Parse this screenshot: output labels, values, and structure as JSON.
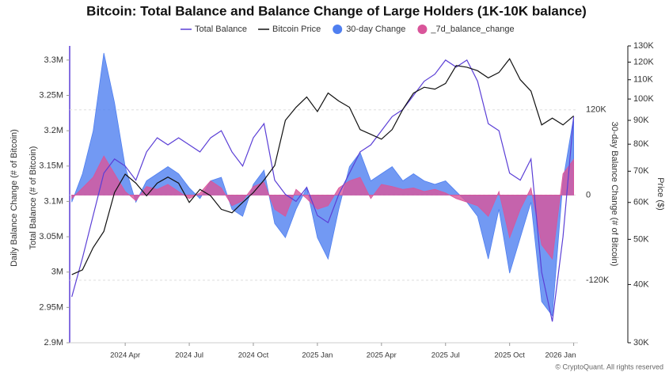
{
  "chart_data": {
    "type": "line",
    "title": "Bitcoin: Total Balance and Balance Change of Large Holders (1K-10K balance)",
    "y_label": "Total Balance (# of Bitcoin)",
    "y_label_outer": "Daily Balance Change (# of Bitcoin)",
    "y2_label": "30-day Balance Change (# of Bitcoin)",
    "y3_label": "Price ($)",
    "footer": "© CryptoQuant. All rights reserved",
    "x": [
      0.5,
      1,
      1.5,
      2,
      2.5,
      3,
      3.5,
      4,
      4.5,
      5,
      5.5,
      6,
      6.5,
      7,
      7.5,
      8,
      8.5,
      9,
      9.5,
      10,
      10.5,
      11,
      11.5,
      12,
      12.5,
      13,
      13.5,
      14,
      14.5,
      15,
      15.5,
      16,
      16.5,
      17,
      17.5,
      18,
      18.5,
      19,
      19.5,
      20,
      20.5,
      21,
      21.5,
      22,
      22.5,
      23,
      23.5,
      24
    ],
    "xlim": [
      0.4,
      24.2
    ],
    "xticks": [
      {
        "value": 3,
        "label": "2024 Apr"
      },
      {
        "value": 6,
        "label": "2024 Jul"
      },
      {
        "value": 9,
        "label": "2024 Oct"
      },
      {
        "value": 12,
        "label": "2025 Jan"
      },
      {
        "value": 15,
        "label": "2025 Apr"
      },
      {
        "value": 18,
        "label": "2025 Jul"
      },
      {
        "value": 21,
        "label": "2025 Oct"
      },
      {
        "value": 24,
        "label": "2026 Jan"
      }
    ],
    "ylim": [
      2900000,
      3320000
    ],
    "yticks": [
      {
        "value": 2900000,
        "label": "2.9M"
      },
      {
        "value": 2950000,
        "label": "2.95M"
      },
      {
        "value": 3000000,
        "label": "3M"
      },
      {
        "value": 3050000,
        "label": "3.05M"
      },
      {
        "value": 3100000,
        "label": "3.1M"
      },
      {
        "value": 3150000,
        "label": "3.15M"
      },
      {
        "value": 3200000,
        "label": "3.2M"
      },
      {
        "value": 3250000,
        "label": "3.25M"
      },
      {
        "value": 3300000,
        "label": "3.3M"
      }
    ],
    "y2lim": [
      -208000,
      210000
    ],
    "y2ticks": [
      {
        "value": 120000,
        "label": "120K"
      },
      0,
      {
        "value": -120000,
        "label": "-120K"
      }
    ],
    "y3lim": [
      30000,
      130000
    ],
    "y3scale": "log",
    "y3ticks": [
      {
        "value": 30000,
        "label": "30K"
      },
      {
        "value": 40000,
        "label": "40K"
      },
      {
        "value": 50000,
        "label": "50K"
      },
      {
        "value": 60000,
        "label": "60K"
      },
      {
        "value": 70000,
        "label": "70K"
      },
      {
        "value": 80000,
        "label": "80K"
      },
      {
        "value": 90000,
        "label": "90K"
      },
      {
        "value": 100000,
        "label": "100K"
      },
      {
        "value": 110000,
        "label": "110K"
      },
      {
        "value": 120000,
        "label": "120K"
      },
      {
        "value": 130000,
        "label": "130K"
      }
    ],
    "series": [
      {
        "name": "30-day Change",
        "type": "area",
        "axis": "y2",
        "color": "#4f7ff0",
        "values": [
          -10000,
          30000,
          90000,
          200000,
          130000,
          40000,
          -10000,
          20000,
          30000,
          40000,
          30000,
          10000,
          -5000,
          20000,
          25000,
          -20000,
          -30000,
          15000,
          35000,
          -40000,
          -60000,
          -20000,
          10000,
          -60000,
          -90000,
          -20000,
          40000,
          60000,
          20000,
          30000,
          40000,
          20000,
          30000,
          20000,
          15000,
          20000,
          5000,
          -10000,
          -30000,
          -90000,
          -20000,
          -110000,
          -60000,
          -10000,
          -150000,
          -170000,
          20000,
          110000
        ]
      },
      {
        "name": "_7d_balance_change",
        "type": "area",
        "axis": "y2",
        "color": "#d9559a",
        "values": [
          -5000,
          10000,
          25000,
          55000,
          30000,
          5000,
          -8000,
          12000,
          8000,
          15000,
          5000,
          -5000,
          3000,
          20000,
          10000,
          -15000,
          -8000,
          12000,
          18000,
          -20000,
          -30000,
          8000,
          -5000,
          -20000,
          -15000,
          10000,
          20000,
          25000,
          -5000,
          15000,
          12000,
          8000,
          10000,
          5000,
          8000,
          3000,
          -5000,
          -10000,
          -15000,
          -30000,
          5000,
          -60000,
          -20000,
          10000,
          -70000,
          -90000,
          30000,
          50000
        ]
      },
      {
        "name": "Total Balance",
        "type": "line",
        "axis": "y",
        "color": "#5b3fd6",
        "values": [
          2965000,
          3020000,
          3080000,
          3140000,
          3160000,
          3150000,
          3130000,
          3170000,
          3190000,
          3180000,
          3190000,
          3180000,
          3170000,
          3190000,
          3200000,
          3170000,
          3150000,
          3190000,
          3210000,
          3130000,
          3110000,
          3100000,
          3120000,
          3080000,
          3070000,
          3110000,
          3140000,
          3170000,
          3180000,
          3200000,
          3220000,
          3230000,
          3250000,
          3270000,
          3280000,
          3300000,
          3290000,
          3300000,
          3270000,
          3210000,
          3200000,
          3140000,
          3130000,
          3160000,
          3000000,
          2930000,
          3050000,
          3220000
        ]
      },
      {
        "name": "Bitcoin Price",
        "type": "line",
        "axis": "y3",
        "color": "#111111",
        "values": [
          42000,
          43000,
          48000,
          52000,
          63000,
          69000,
          66000,
          62000,
          66000,
          68000,
          66000,
          60000,
          64000,
          62000,
          58000,
          57000,
          60000,
          63000,
          67000,
          72000,
          90000,
          96000,
          101000,
          94000,
          103000,
          99000,
          96000,
          86000,
          84000,
          82000,
          86000,
          95000,
          103000,
          106000,
          105000,
          108000,
          118000,
          117000,
          115000,
          111000,
          114000,
          122000,
          110000,
          104000,
          88000,
          91000,
          88000,
          92000
        ]
      }
    ],
    "legend_order": [
      2,
      3,
      0,
      1
    ]
  }
}
